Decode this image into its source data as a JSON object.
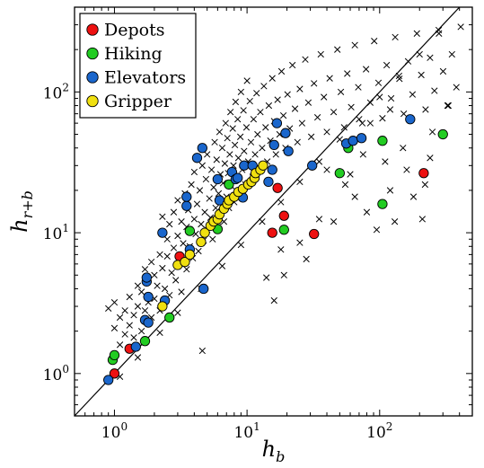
{
  "chart_data": {
    "type": "scatter",
    "x_scale": "log",
    "y_scale": "log",
    "xlim": [
      0.5,
      500
    ],
    "ylim": [
      0.5,
      400
    ],
    "grid": false,
    "legend_placement": "top-left",
    "x_ticks": [
      {
        "value": 1,
        "base": "10",
        "exp": "0"
      },
      {
        "value": 10,
        "base": "10",
        "exp": "1"
      },
      {
        "value": 100,
        "base": "10",
        "exp": "2"
      }
    ],
    "y_ticks": [
      {
        "value": 1,
        "base": "10",
        "exp": "0"
      },
      {
        "value": 10,
        "base": "10",
        "exp": "1"
      },
      {
        "value": 100,
        "base": "10",
        "exp": "2"
      }
    ],
    "xlabel": {
      "main": "h",
      "sub": "b"
    },
    "ylabel": {
      "main": "h",
      "sub": "r+b"
    },
    "diagonal": {
      "from": [
        0.5,
        0.5
      ],
      "to": [
        500,
        500
      ]
    },
    "series": [
      {
        "name": "Depots",
        "color": "#ee1111",
        "points": [
          [
            1.0,
            1.0
          ],
          [
            1.3,
            1.5
          ],
          [
            3.1,
            6.8
          ],
          [
            15.5,
            10.0
          ],
          [
            17.0,
            20.8
          ],
          [
            19.0,
            13.2
          ],
          [
            32.0,
            9.8
          ],
          [
            215.0,
            26.5
          ]
        ]
      },
      {
        "name": "Hiking",
        "color": "#22cc22",
        "points": [
          [
            0.97,
            1.25
          ],
          [
            1.0,
            1.35
          ],
          [
            1.7,
            1.7
          ],
          [
            2.6,
            2.5
          ],
          [
            3.7,
            10.3
          ],
          [
            6.0,
            10.6
          ],
          [
            7.3,
            22.0
          ],
          [
            19.0,
            10.5
          ],
          [
            50.0,
            26.5
          ],
          [
            58.0,
            40.0
          ],
          [
            105.0,
            16.0
          ],
          [
            105.0,
            45.0
          ],
          [
            300.0,
            50.0
          ]
        ]
      },
      {
        "name": "Elevators",
        "color": "#1a66cc",
        "points": [
          [
            0.9,
            0.9
          ],
          [
            1.45,
            1.55
          ],
          [
            1.7,
            2.4
          ],
          [
            1.75,
            4.5
          ],
          [
            1.75,
            4.8
          ],
          [
            1.8,
            2.3
          ],
          [
            1.8,
            3.5
          ],
          [
            2.3,
            10.0
          ],
          [
            2.4,
            3.3
          ],
          [
            3.5,
            15.5
          ],
          [
            3.5,
            18.0
          ],
          [
            3.7,
            7.6
          ],
          [
            4.2,
            34.0
          ],
          [
            4.6,
            40.0
          ],
          [
            4.7,
            4.0
          ],
          [
            6.0,
            24.0
          ],
          [
            6.2,
            17.0
          ],
          [
            7.7,
            27.0
          ],
          [
            8.2,
            24.0
          ],
          [
            8.5,
            24.5
          ],
          [
            9.3,
            17.8
          ],
          [
            9.5,
            30.0
          ],
          [
            11.0,
            30.0
          ],
          [
            14.5,
            23.0
          ],
          [
            15.5,
            28.0
          ],
          [
            16.0,
            42.0
          ],
          [
            16.8,
            60.0
          ],
          [
            19.5,
            51.0
          ],
          [
            20.5,
            38.0
          ],
          [
            31.0,
            30.0
          ],
          [
            56.0,
            43.0
          ],
          [
            63.0,
            45.0
          ],
          [
            73.0,
            47.0
          ],
          [
            170.0,
            64.0
          ]
        ]
      },
      {
        "name": "Gripper",
        "color": "#f0e010",
        "points": [
          [
            2.3,
            3.0
          ],
          [
            3.0,
            5.9
          ],
          [
            3.4,
            6.2
          ],
          [
            3.7,
            7.0
          ],
          [
            4.5,
            8.6
          ],
          [
            4.8,
            10.0
          ],
          [
            5.3,
            11.2
          ],
          [
            5.6,
            12.0
          ],
          [
            6.0,
            12.5
          ],
          [
            6.2,
            13.5
          ],
          [
            6.7,
            14.8
          ],
          [
            7.1,
            16.0
          ],
          [
            7.3,
            17.0
          ],
          [
            8.0,
            18.0
          ],
          [
            8.6,
            19.5
          ],
          [
            9.3,
            20.5
          ],
          [
            10.2,
            22.0
          ],
          [
            10.8,
            23.0
          ],
          [
            11.4,
            24.5
          ],
          [
            11.6,
            26.5
          ],
          [
            12.6,
            28.0
          ],
          [
            13.2,
            30.0
          ]
        ]
      },
      {
        "name": "",
        "marker": "x",
        "color": "#000000",
        "points": [
          [
            0.9,
            2.9
          ],
          [
            1.0,
            2.1
          ],
          [
            1.0,
            3.2
          ],
          [
            1.1,
            1.6
          ],
          [
            1.1,
            2.5
          ],
          [
            1.2,
            1.9
          ],
          [
            1.2,
            2.8
          ],
          [
            1.3,
            2.2
          ],
          [
            1.3,
            3.5
          ],
          [
            1.4,
            1.8
          ],
          [
            1.4,
            2.6
          ],
          [
            1.5,
            3.0
          ],
          [
            1.5,
            4.2
          ],
          [
            1.6,
            2.0
          ],
          [
            1.6,
            3.8
          ],
          [
            1.7,
            2.8
          ],
          [
            1.7,
            5.5
          ],
          [
            1.8,
            3.2
          ],
          [
            1.8,
            4.6
          ],
          [
            1.9,
            2.5
          ],
          [
            1.9,
            6.2
          ],
          [
            2.0,
            3.4
          ],
          [
            2.0,
            5.0
          ],
          [
            2.1,
            4.2
          ],
          [
            2.2,
            2.8
          ],
          [
            2.2,
            7.0
          ],
          [
            2.3,
            5.6
          ],
          [
            2.3,
            13.0
          ],
          [
            2.4,
            4.0
          ],
          [
            2.5,
            6.8
          ],
          [
            2.5,
            9.0
          ],
          [
            2.6,
            3.6
          ],
          [
            2.6,
            11.5
          ],
          [
            2.7,
            5.2
          ],
          [
            2.8,
            7.8
          ],
          [
            2.8,
            14.0
          ],
          [
            2.9,
            4.6
          ],
          [
            3.0,
            9.5
          ],
          [
            3.0,
            17.0
          ],
          [
            3.1,
            6.0
          ],
          [
            3.2,
            12.0
          ],
          [
            3.2,
            3.8
          ],
          [
            3.3,
            8.4
          ],
          [
            3.4,
            19.0
          ],
          [
            3.5,
            5.5
          ],
          [
            3.5,
            11.0
          ],
          [
            3.6,
            14.5
          ],
          [
            3.7,
            8.0
          ],
          [
            3.8,
            22.0
          ],
          [
            3.9,
            6.6
          ],
          [
            4.0,
            12.5
          ],
          [
            4.0,
            27.0
          ],
          [
            4.1,
            9.8
          ],
          [
            4.2,
            16.0
          ],
          [
            4.3,
            7.4
          ],
          [
            4.4,
            20.0
          ],
          [
            4.5,
            11.5
          ],
          [
            4.6,
            30.0
          ],
          [
            4.7,
            8.8
          ],
          [
            4.8,
            14.0
          ],
          [
            4.9,
            24.0
          ],
          [
            5.0,
            10.5
          ],
          [
            5.0,
            36.0
          ],
          [
            5.2,
            17.5
          ],
          [
            5.3,
            12.8
          ],
          [
            5.4,
            28.0
          ],
          [
            5.5,
            9.0
          ],
          [
            5.6,
            21.0
          ],
          [
            5.7,
            44.0
          ],
          [
            5.8,
            15.0
          ],
          [
            5.9,
            33.0
          ],
          [
            6.0,
            11.0
          ],
          [
            6.1,
            19.0
          ],
          [
            6.2,
            52.0
          ],
          [
            6.3,
            26.0
          ],
          [
            6.4,
            14.2
          ],
          [
            6.5,
            40.0
          ],
          [
            6.6,
            22.5
          ],
          [
            6.7,
            12.0
          ],
          [
            6.8,
            31.0
          ],
          [
            6.9,
            60.0
          ],
          [
            7.0,
            18.0
          ],
          [
            7.1,
            47.0
          ],
          [
            7.2,
            26.5
          ],
          [
            7.3,
            15.0
          ],
          [
            7.4,
            36.0
          ],
          [
            7.5,
            72.0
          ],
          [
            7.6,
            21.5
          ],
          [
            7.8,
            55.0
          ],
          [
            7.9,
            30.0
          ],
          [
            8.0,
            16.5
          ],
          [
            8.1,
            42.0
          ],
          [
            8.2,
            85.0
          ],
          [
            8.4,
            24.0
          ],
          [
            8.5,
            64.0
          ],
          [
            8.6,
            34.0
          ],
          [
            8.8,
            19.0
          ],
          [
            8.9,
            48.0
          ],
          [
            9.0,
            100.0
          ],
          [
            9.2,
            28.0
          ],
          [
            9.4,
            74.0
          ],
          [
            9.5,
            38.0
          ],
          [
            9.7,
            22.0
          ],
          [
            9.9,
            56.0
          ],
          [
            10.0,
            120.0
          ],
          [
            10.2,
            32.0
          ],
          [
            10.5,
            86.0
          ],
          [
            10.7,
            44.0
          ],
          [
            11.0,
            25.0
          ],
          [
            11.2,
            64.0
          ],
          [
            11.5,
            36.0
          ],
          [
            11.8,
            98.0
          ],
          [
            12.0,
            50.0
          ],
          [
            12.3,
            28.5
          ],
          [
            12.6,
            72.0
          ],
          [
            13.0,
            40.0
          ],
          [
            13.4,
            110.0
          ],
          [
            13.8,
            56.0
          ],
          [
            14.2,
            32.0
          ],
          [
            14.6,
            80.0
          ],
          [
            15.0,
            45.0
          ],
          [
            15.5,
            125.0
          ],
          [
            16.0,
            62.0
          ],
          [
            16.5,
            36.0
          ],
          [
            17.0,
            88.0
          ],
          [
            17.6,
            50.0
          ],
          [
            18.2,
            140.0
          ],
          [
            18.8,
            68.0
          ],
          [
            19.5,
            40.0
          ],
          [
            20.2,
            96.0
          ],
          [
            21.0,
            55.0
          ],
          [
            22.0,
            155.0
          ],
          [
            23.0,
            76.0
          ],
          [
            24.0,
            44.0
          ],
          [
            25.0,
            105.0
          ],
          [
            26.0,
            60.0
          ],
          [
            27.5,
            170.0
          ],
          [
            29.0,
            84.0
          ],
          [
            30.5,
            48.0
          ],
          [
            32.0,
            115.0
          ],
          [
            34.0,
            66.0
          ],
          [
            36.0,
            185.0
          ],
          [
            38.0,
            92.0
          ],
          [
            40.0,
            52.0
          ],
          [
            42.0,
            125.0
          ],
          [
            45.0,
            72.0
          ],
          [
            48.0,
            200.0
          ],
          [
            51.0,
            100.0
          ],
          [
            54.0,
            56.0
          ],
          [
            57.0,
            135.0
          ],
          [
            61.0,
            78.0
          ],
          [
            65.0,
            215.0
          ],
          [
            69.0,
            108.0
          ],
          [
            74.0,
            60.0
          ],
          [
            79.0,
            145.0
          ],
          [
            85.0,
            84.0
          ],
          [
            91.0,
            230.0
          ],
          [
            98.0,
            116.0
          ],
          [
            105.0,
            65.0
          ],
          [
            113.0,
            155.0
          ],
          [
            122.0,
            90.0
          ],
          [
            131.0,
            245.0
          ],
          [
            141.0,
            124.0
          ],
          [
            152.0,
            70.0
          ],
          [
            164.0,
            165.0
          ],
          [
            177.0,
            96.0
          ],
          [
            191.0,
            260.0
          ],
          [
            206.0,
            132.0
          ],
          [
            222.0,
            75.0
          ],
          [
            240.0,
            175.0
          ],
          [
            259.0,
            102.0
          ],
          [
            279.0,
            275.0
          ],
          [
            301.0,
            140.0
          ],
          [
            325.0,
            80.0
          ],
          [
            351.0,
            185.0
          ],
          [
            379.0,
            108.0
          ],
          [
            409.0,
            290.0
          ],
          [
            1.1,
            0.95
          ],
          [
            1.5,
            1.3
          ],
          [
            2.2,
            1.95
          ],
          [
            3.0,
            2.7
          ],
          [
            4.5,
            4.0
          ],
          [
            6.5,
            5.8
          ],
          [
            9.0,
            8.2
          ],
          [
            13.0,
            12.0
          ],
          [
            18.0,
            16.5
          ],
          [
            25.0,
            23.0
          ],
          [
            35.0,
            32.0
          ],
          [
            50.0,
            46.0
          ],
          [
            70.0,
            64.0
          ],
          [
            100.0,
            92.0
          ],
          [
            140.0,
            130.0
          ],
          [
            200.0,
            185.0
          ],
          [
            280.0,
            260.0
          ],
          [
            4.6,
            1.45
          ],
          [
            14.0,
            4.8
          ],
          [
            18.0,
            7.6
          ],
          [
            25.0,
            8.5
          ],
          [
            35.0,
            12.5
          ],
          [
            40.0,
            28.0
          ],
          [
            55.0,
            22.0
          ],
          [
            65.0,
            18.0
          ],
          [
            80.0,
            14.0
          ],
          [
            95.0,
            10.5
          ],
          [
            110.0,
            32.0
          ],
          [
            120.0,
            20.0
          ],
          [
            130.0,
            12.0
          ],
          [
            150.0,
            40.0
          ],
          [
            160.0,
            28.0
          ],
          [
            180.0,
            18.0
          ],
          [
            210.0,
            12.5
          ],
          [
            220.0,
            22.0
          ],
          [
            240.0,
            34.0
          ],
          [
            16.0,
            3.3
          ],
          [
            19.0,
            5.0
          ],
          [
            28.0,
            6.5
          ],
          [
            45.0,
            12.0
          ],
          [
            60.0,
            26.0
          ],
          [
            75.0,
            36.0
          ],
          [
            85.0,
            60.0
          ],
          [
            120.0,
            75.0
          ],
          [
            250.0,
            52.0
          ],
          [
            330.0,
            80.0
          ]
        ]
      }
    ]
  }
}
